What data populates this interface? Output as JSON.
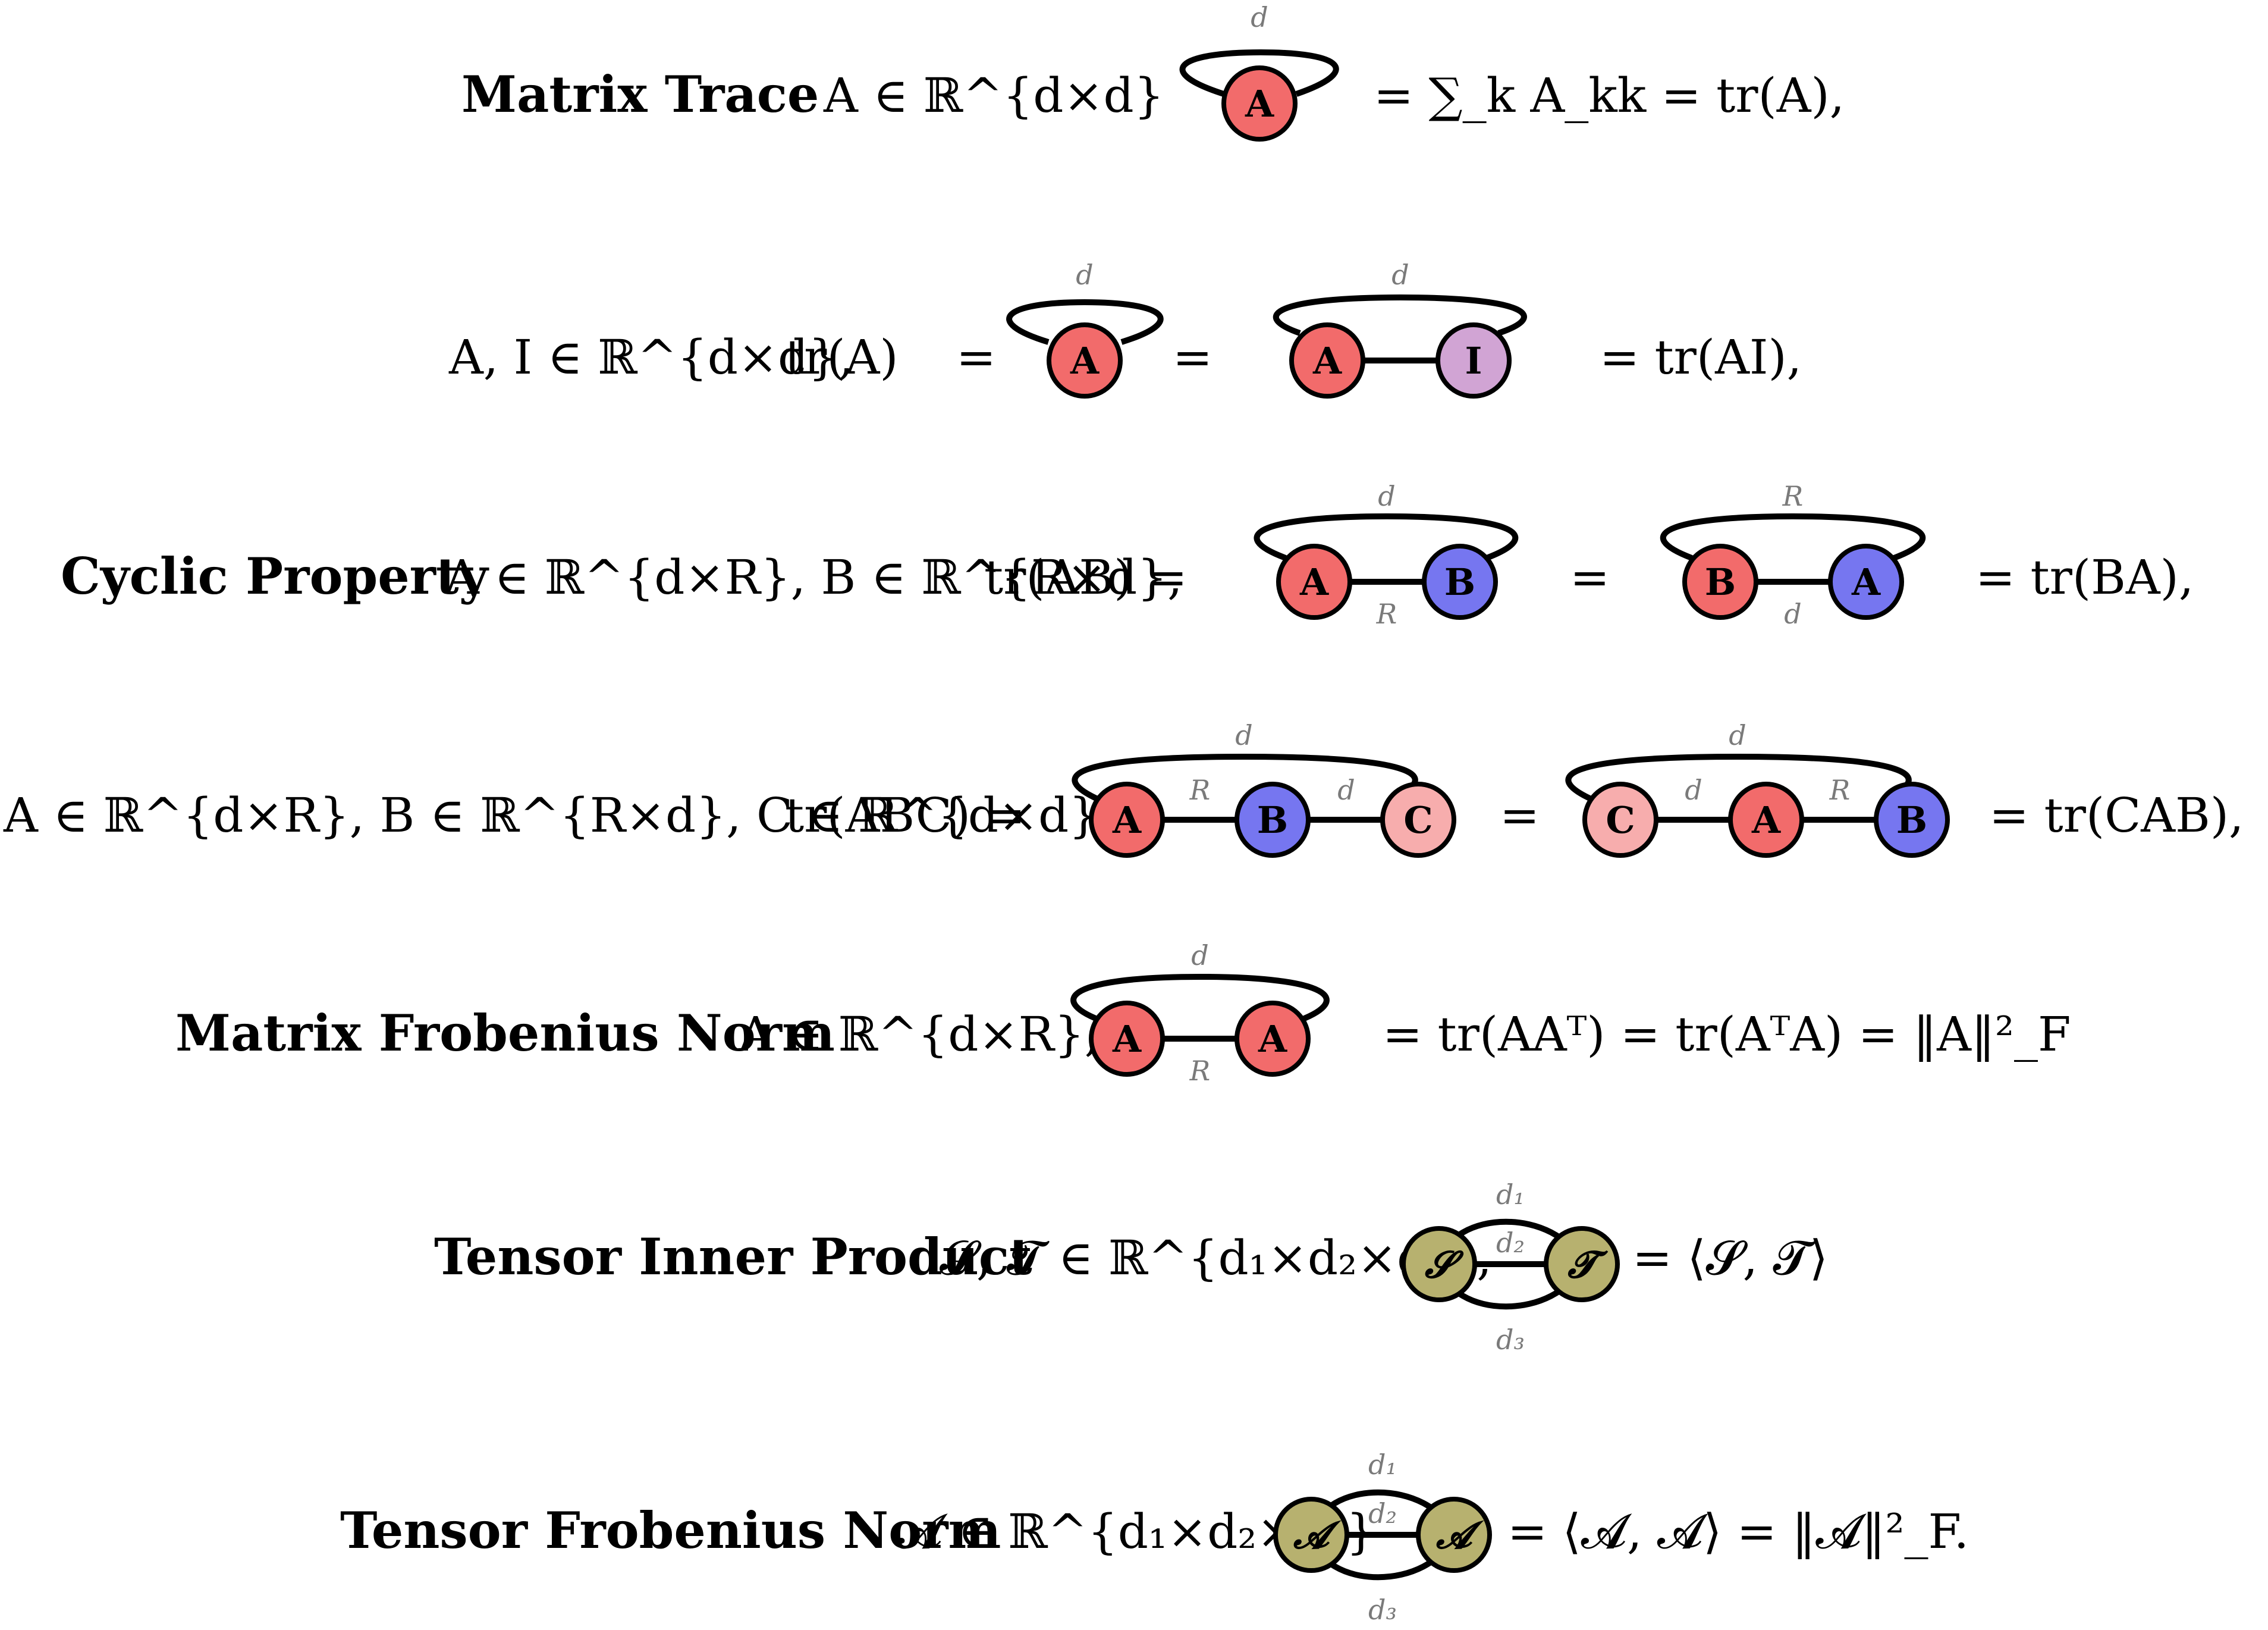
{
  "colors": {
    "red": "#f26b6b",
    "blue": "#7676f0",
    "purple": "#d1a4d4",
    "pink": "#f7adad",
    "olive": "#b7b16f"
  },
  "rows": [
    {
      "title": "Matrix Trace",
      "domain": "A ∈ ℝ^{d×d}",
      "loop_label": "d",
      "node": "A",
      "rhs": "= ∑_k A_kk = tr(A),"
    },
    {
      "domain": "A, I ∈ ℝ^{d×d},",
      "lhs": "tr(A)",
      "eq1": "=",
      "loop1_label": "d",
      "node1": "A",
      "eq2": "=",
      "loop2_label": "d",
      "node2a": "A",
      "node2b": "I",
      "rhs": "=  tr(AI),"
    },
    {
      "title": "Cyclic Property",
      "domain": "A ∈ ℝ^{d×R}, B ∈ ℝ^{R×d},",
      "lhs": "tr(AB) =",
      "g1": {
        "top": "d",
        "bottom": "R",
        "left": "A",
        "right": "B"
      },
      "eq": "=",
      "g2": {
        "top": "R",
        "bottom": "d",
        "left": "B",
        "right": "A"
      },
      "rhs": "= tr(BA),"
    },
    {
      "domain": "A ∈ ℝ^{d×R}, B ∈ ℝ^{R×d}, C ∈ ℝ^{d×d},",
      "lhs": "tr(ABC) =",
      "g1": {
        "top": "d",
        "e1": "R",
        "e2": "d",
        "n1": "A",
        "n2": "B",
        "n3": "C"
      },
      "eq": "=",
      "g2": {
        "top": "d",
        "e1": "d",
        "e2": "R",
        "n1": "C",
        "n2": "A",
        "n3": "B"
      },
      "rhs": "= tr(CAB),"
    },
    {
      "title": "Matrix Frobenius Norm",
      "domain": "A ∈ ℝ^{d×R},",
      "g": {
        "top": "d",
        "bottom": "R",
        "left": "A",
        "right": "A"
      },
      "rhs": "= tr(AAᵀ) = tr(AᵀA) = ‖A‖²_F"
    },
    {
      "title": "Tensor Inner Product",
      "domain": "𝓢, 𝓣 ∈ ℝ^{d₁×d₂×d₃},",
      "g": {
        "top": "d₁",
        "mid": "d₂",
        "bottom": "d₃",
        "left": "𝓢",
        "right": "𝓣"
      },
      "rhs": "= ⟨𝓢, 𝓣⟩"
    },
    {
      "title": "Tensor Frobenius Norm",
      "domain": "𝓐 ∈ ℝ^{d₁×d₂×d₃}",
      "g": {
        "top": "d₁",
        "mid": "d₂",
        "bottom": "d₃",
        "left": "𝓐",
        "right": "𝓐"
      },
      "rhs": "= ⟨𝓐, 𝓐⟩ = ‖𝓐‖²_F."
    }
  ]
}
